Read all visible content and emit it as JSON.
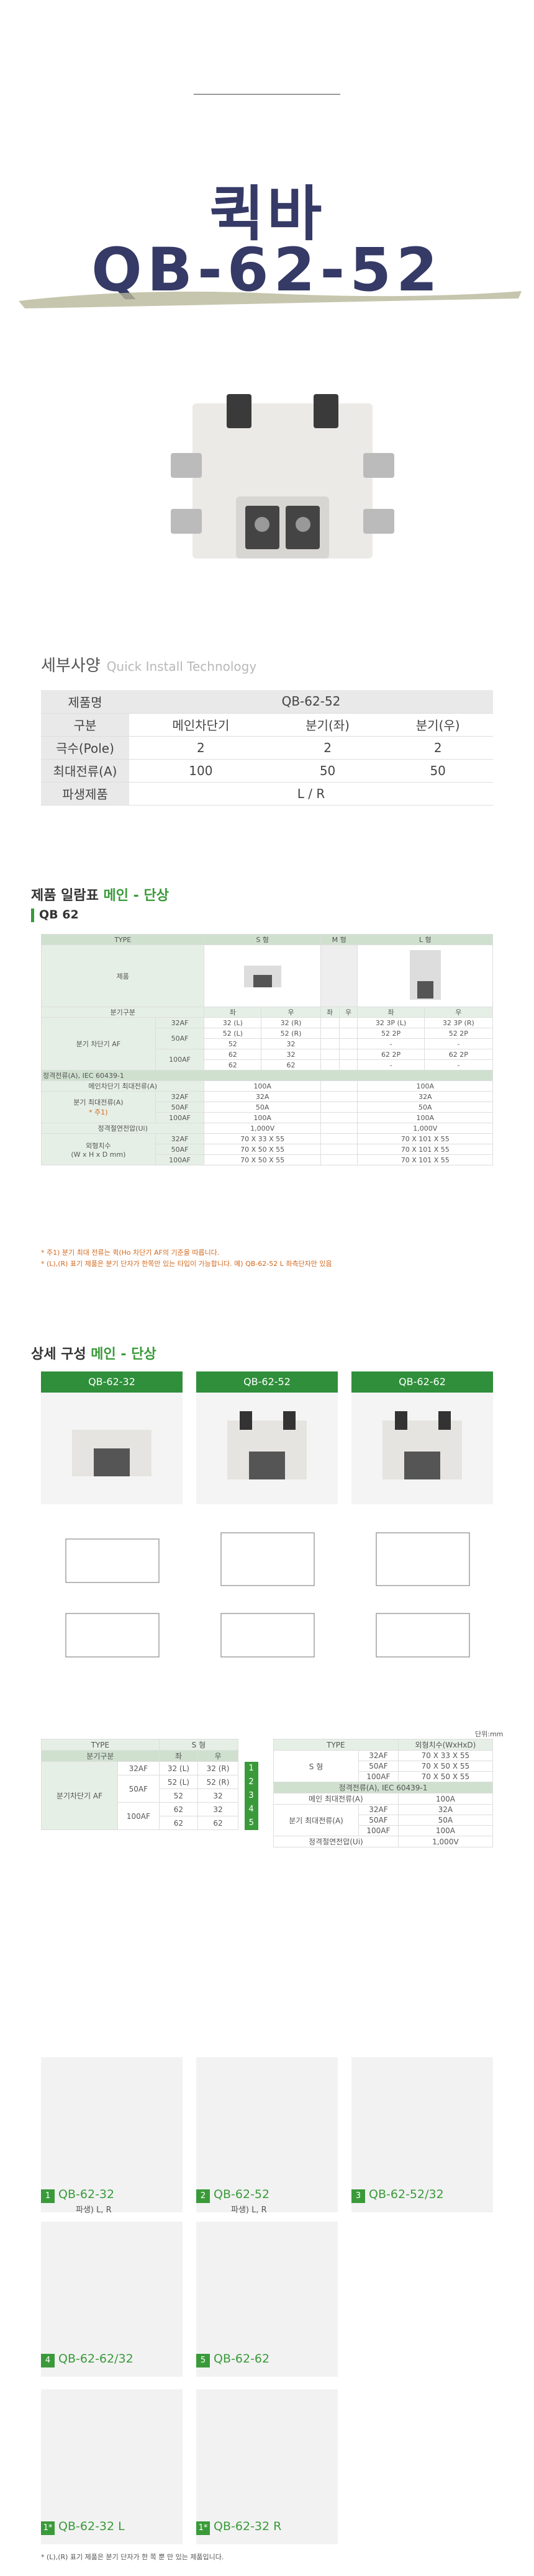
{
  "hero": {
    "title_ko": "퀵바",
    "title_model": "QB-62-52"
  },
  "spec": {
    "heading": "세부사양",
    "heading_en": "Quick Install Technology",
    "rows": [
      {
        "label": "제품명",
        "cells": [
          "QB-62-52"
        ]
      },
      {
        "label": "구분",
        "cells": [
          "메인차단기",
          "분기(좌)",
          "분기(우)"
        ]
      },
      {
        "label": "극수(Pole)",
        "cells": [
          "2",
          "2",
          "2"
        ]
      },
      {
        "label": "최대전류(A)",
        "cells": [
          "100",
          "50",
          "50"
        ]
      },
      {
        "label": "파생제품",
        "cells": [
          "L / R"
        ]
      }
    ]
  },
  "lineup": {
    "heading": "제품 일람표",
    "heading_accent": "메인 - 단상",
    "subheading": "QB 62",
    "cols": {
      "type": "TYPE",
      "s": "S 형",
      "m": "M 형",
      "l": "L 형"
    },
    "product": "제품",
    "branch_label": "분기구분",
    "left": "좌",
    "right": "우",
    "branch_breaker": "분기 차단기 AF",
    "rating_header": "정격전류(A), IEC 60439-1",
    "main_max": "메인차단기 최대전류(A)",
    "branch_max": "분기 최대전류(A)",
    "branch_note": "* 주1)",
    "voltage": "정격절연전압(Ui)",
    "dims": "외형치수\n(W x H x D mm)",
    "rows": [
      {
        "af": "32AF",
        "s": [
          "32 (L)",
          "32 (R)"
        ],
        "l": [
          "32 3P (L)",
          "32 3P (R)"
        ]
      },
      {
        "af": "50AF",
        "s": [
          "52 (L)",
          "52 (R)"
        ],
        "l": [
          "52 2P",
          "52 2P"
        ]
      },
      {
        "af": "",
        "s": [
          "52",
          "32"
        ],
        "l": [
          "-",
          "-"
        ]
      },
      {
        "af": "100AF",
        "s": [
          "62",
          "32"
        ],
        "l": [
          "62 2P",
          "62 2P"
        ]
      },
      {
        "af": "",
        "s": [
          "62",
          "62"
        ],
        "l": [
          "-",
          "-"
        ]
      }
    ],
    "main_val": {
      "s": "100A",
      "l": "100A"
    },
    "branch_vals": [
      {
        "af": "32AF",
        "s": "32A",
        "l": "32A"
      },
      {
        "af": "50AF",
        "s": "50A",
        "l": "50A"
      },
      {
        "af": "100AF",
        "s": "100A",
        "l": "100A"
      }
    ],
    "volt_val": {
      "s": "1,000V",
      "l": "1,000V"
    },
    "dim_vals": [
      {
        "af": "32AF",
        "s": "70 X 33 X 55",
        "l": "70 X 101 X 55"
      },
      {
        "af": "50AF",
        "s": "70 X 50 X 55",
        "l": "70 X 101 X 55"
      },
      {
        "af": "100AF",
        "s": "70 X 50 X 55",
        "l": "70 X 101 X 55"
      }
    ],
    "notes": [
      "* 주1) 분기 최대 전류는 퀵(Ho 차단기 AF의 기준을 따릅니다.",
      "* (L),(R) 표기 제품은 분기 단자가 한쪽만 있는 타입이 가능합니다. 예) QB-62-52 L 좌측단자만 있음"
    ]
  },
  "detail": {
    "heading": "상세 구성",
    "heading_accent": "메인 - 단상",
    "tabs": [
      "QB-62-32",
      "QB-62-52",
      "QB-62-62"
    ],
    "unit": "단위:mm",
    "t1": {
      "type": "TYPE",
      "s": "S 형",
      "branch": "분기구분",
      "left": "좌",
      "right": "우",
      "af_label": "분기차단기 AF",
      "rows": [
        {
          "af": "32AF",
          "l": "32 (L)",
          "r": "32 (R)",
          "n": "1"
        },
        {
          "af": "50AF",
          "l": "52 (L)",
          "r": "52 (R)",
          "n": "2"
        },
        {
          "af": "",
          "l": "52",
          "r": "32",
          "n": "3"
        },
        {
          "af": "100AF",
          "l": "62",
          "r": "32",
          "n": "4"
        },
        {
          "af": "",
          "l": "62",
          "r": "62",
          "n": "5"
        }
      ]
    },
    "t2": {
      "type": "TYPE",
      "dim_h": "외형치수(WxHxD)",
      "s": "S 형",
      "dims": [
        {
          "af": "32AF",
          "v": "70 X 33 X 55"
        },
        {
          "af": "50AF",
          "v": "70 X 50 X 55"
        },
        {
          "af": "100AF",
          "v": "70 X 50 X 55"
        }
      ],
      "rating": "정격전류(A), IEC 60439-1",
      "main_max": "메인 최대전류(A)",
      "main_val": "100A",
      "branch_max": "분기 최대전류(A)",
      "branch": [
        {
          "af": "32AF",
          "v": "32A"
        },
        {
          "af": "50AF",
          "v": "50A"
        },
        {
          "af": "100AF",
          "v": "100A"
        }
      ],
      "volt": "정격절연전압(Ui)",
      "volt_val": "1,000V"
    }
  },
  "gallery": [
    {
      "n": "1",
      "name": "QB-62-32",
      "sub": "파생) L, R"
    },
    {
      "n": "2",
      "name": "QB-62-52",
      "sub": "파생) L, R"
    },
    {
      "n": "3",
      "name": "QB-62-52/32",
      "sub": ""
    },
    {
      "n": "4",
      "name": "QB-62-62/32",
      "sub": ""
    },
    {
      "n": "5",
      "name": "QB-62-62",
      "sub": ""
    },
    {
      "n": "1*",
      "name": "QB-62-32 L",
      "sub": ""
    },
    {
      "n": "1*",
      "name": "QB-62-32 R",
      "sub": ""
    }
  ],
  "gallery_note": "* (L),(R) 표기 제품은 분기 단자가 한 쪽 뿐 만 있는 제품입니다.",
  "colors": {
    "accent": "#3a9a3a",
    "title": "#353a66"
  }
}
